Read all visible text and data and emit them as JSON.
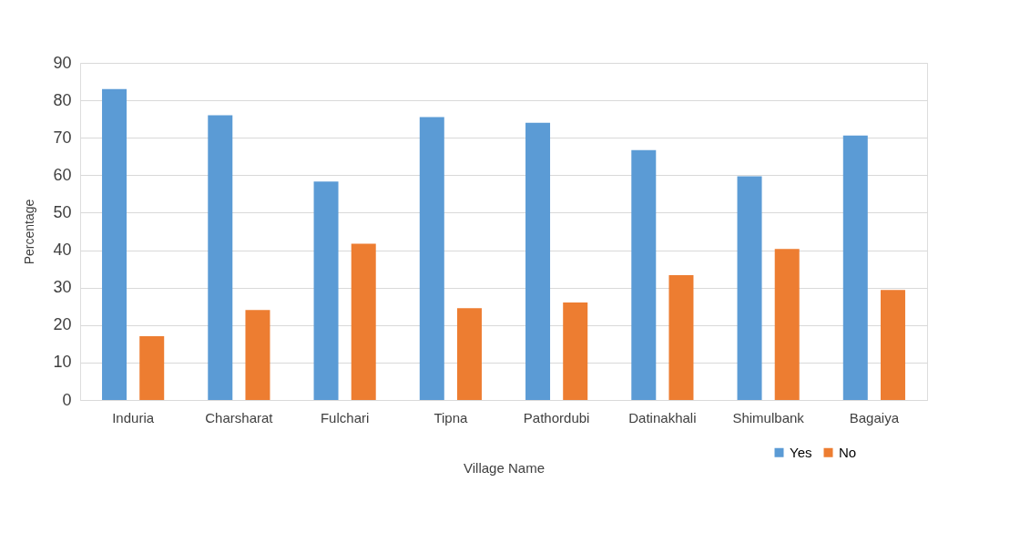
{
  "chart_data": {
    "type": "bar",
    "xlabel": "Village Name",
    "ylabel": "Percentage",
    "categories": [
      "Induria",
      "Charsharat",
      "Fulchari",
      "Tipna",
      "Pathordubi",
      "Datinakhali",
      "Shimulbank",
      "Bagaiya"
    ],
    "series": [
      {
        "name": "Yes",
        "color": "#5b9bd5",
        "values": [
          83,
          76,
          58.3,
          75.5,
          74,
          66.7,
          59.7,
          70.6
        ]
      },
      {
        "name": "No",
        "color": "#ed7d31",
        "values": [
          17,
          24,
          41.7,
          24.5,
          26,
          33.3,
          40.3,
          29.4
        ]
      }
    ],
    "ylim": [
      0,
      90
    ],
    "yticks": [
      0,
      10,
      20,
      30,
      40,
      50,
      60,
      70,
      80,
      90
    ],
    "grid": "y",
    "legend": "bottom right"
  }
}
